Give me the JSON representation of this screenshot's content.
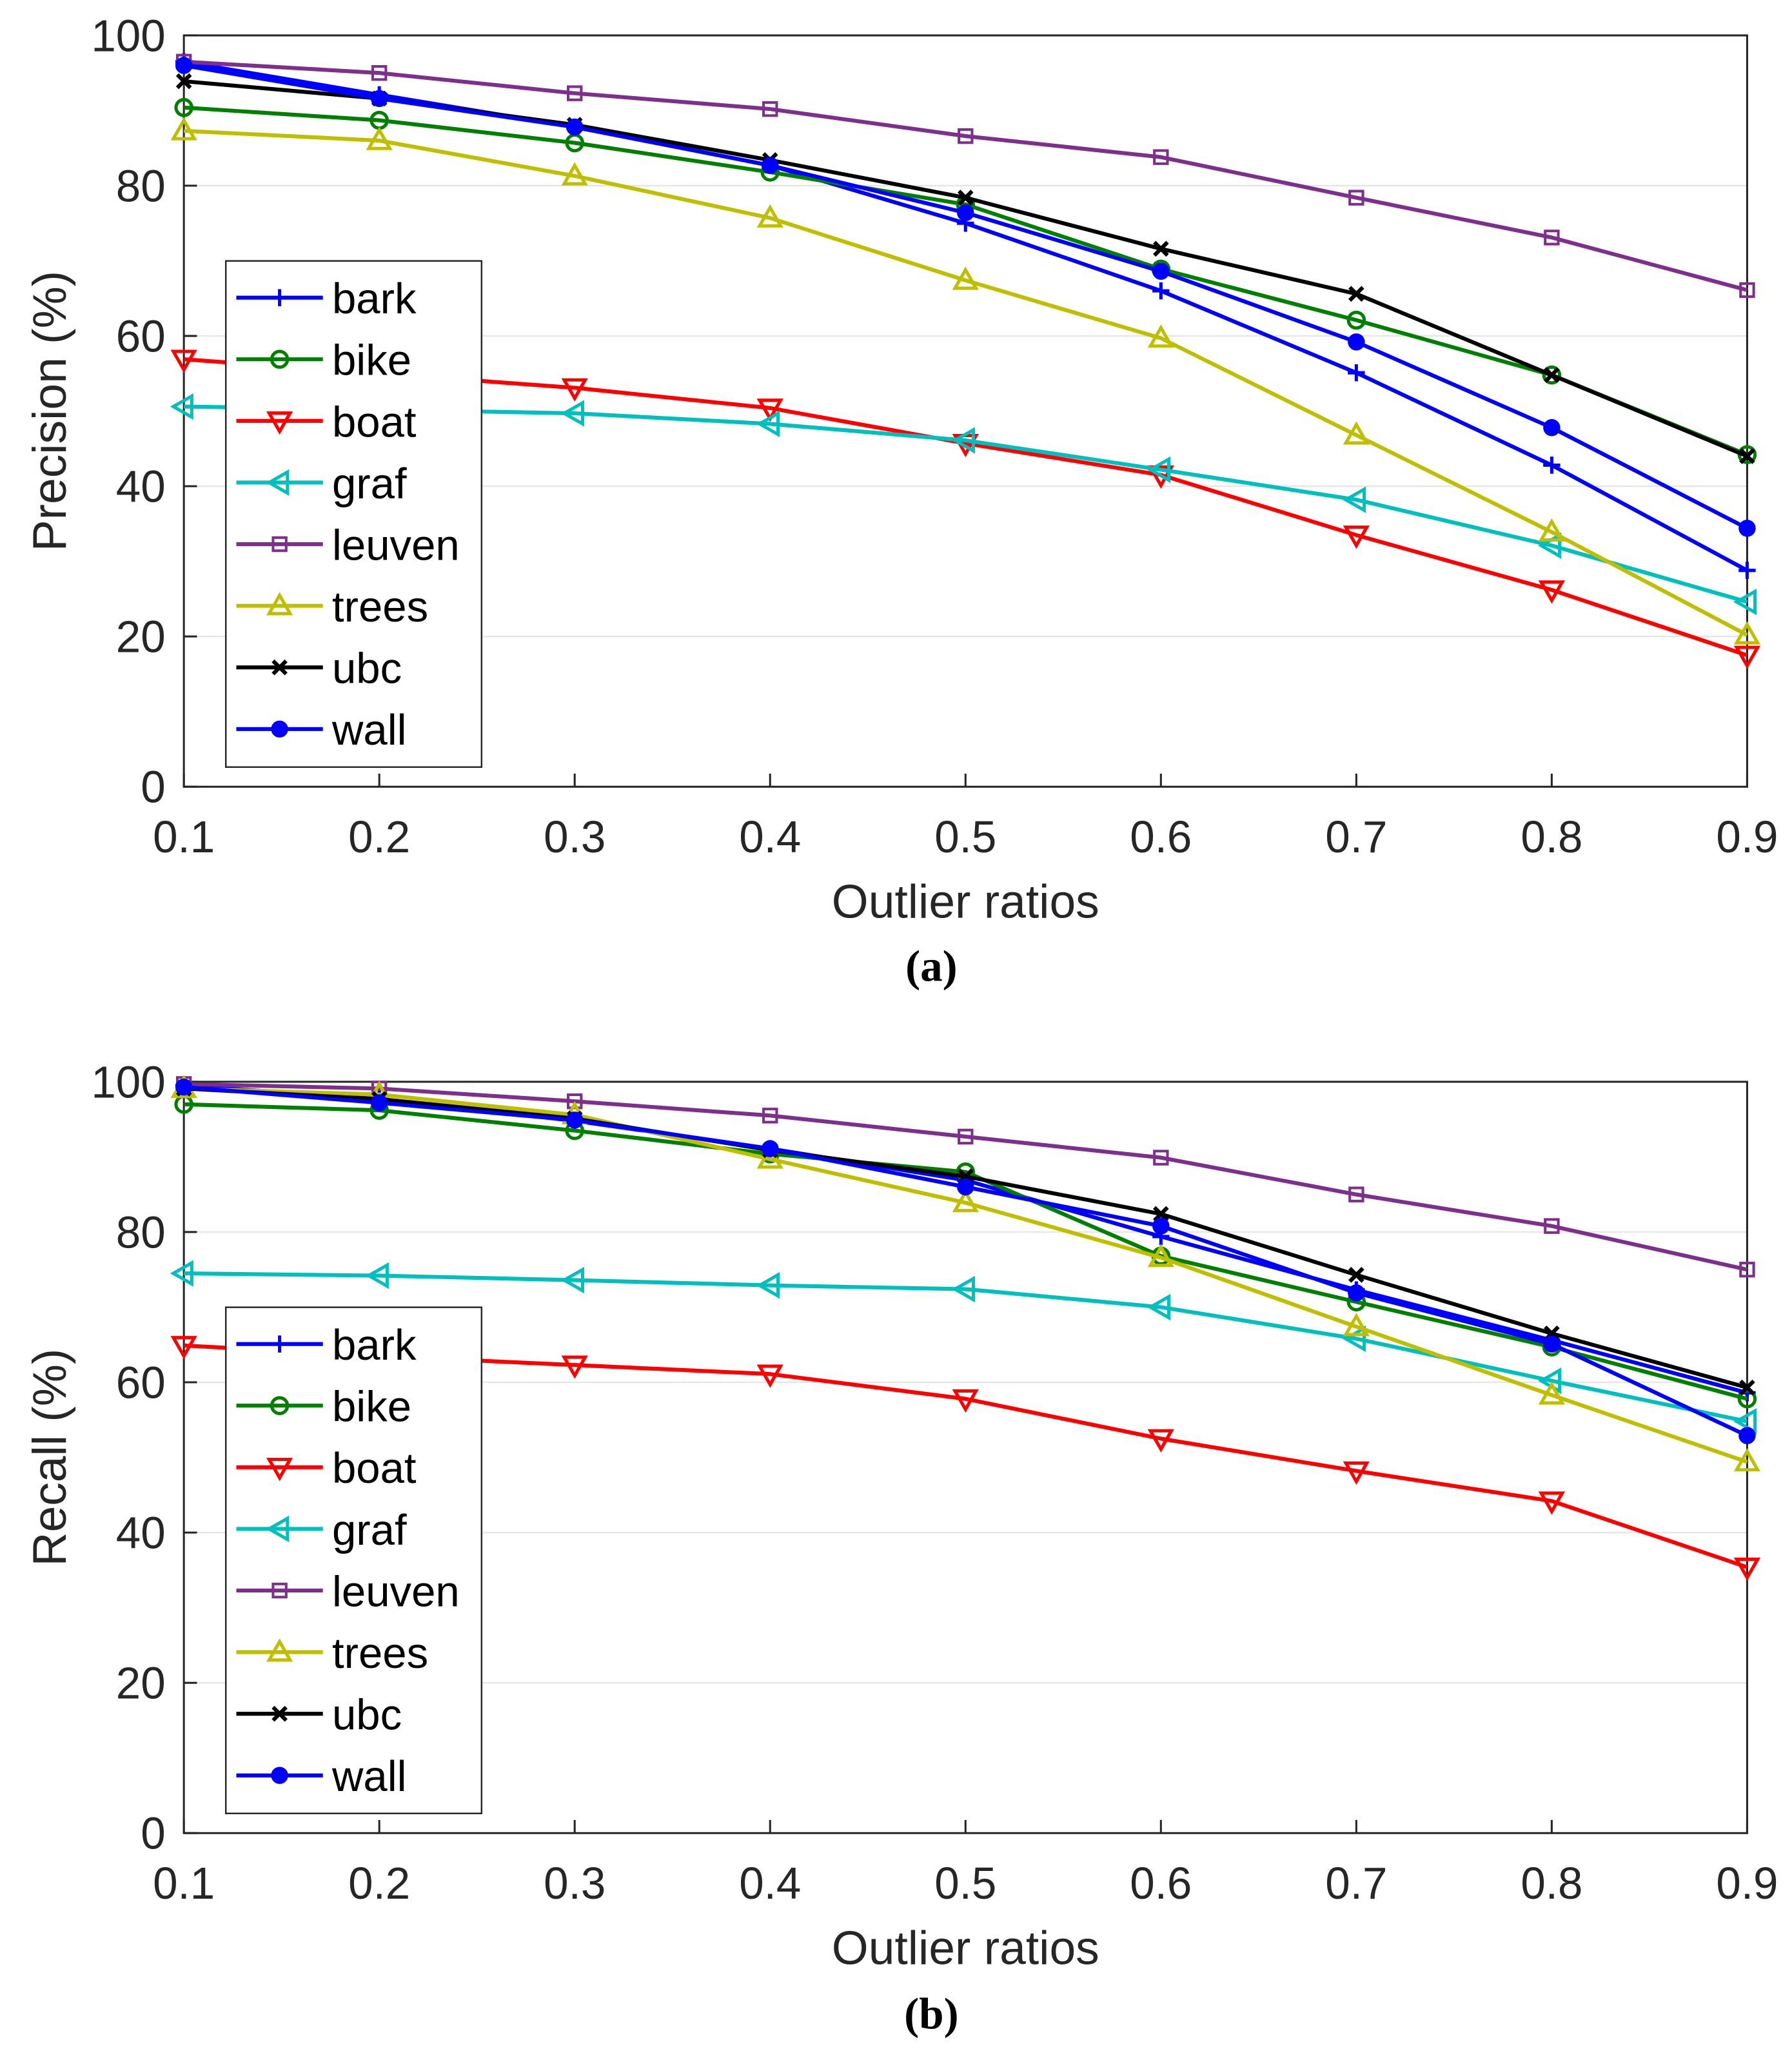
{
  "colors": {
    "bark": "#0000ff",
    "bike": "#008000",
    "boat": "#ff0000",
    "graf": "#00bfbf",
    "leuven": "#7e2f8e",
    "trees": "#bfbf00",
    "ubc": "#000000",
    "wall": "#0000ff"
  },
  "chart_data": [
    {
      "type": "line",
      "caption": "(a)",
      "xlabel": "Outlier ratios",
      "ylabel": "Precision (%)",
      "xlim": [
        0.1,
        0.9
      ],
      "ylim": [
        0,
        100
      ],
      "xticks": [
        "0.1",
        "0.2",
        "0.3",
        "0.4",
        "0.5",
        "0.6",
        "0.7",
        "0.8",
        "0.9"
      ],
      "yticks": [
        "0",
        "20",
        "40",
        "60",
        "80",
        "100"
      ],
      "grid": true,
      "legend_position": "center-left",
      "x": [
        0.1,
        0.2,
        0.3,
        0.4,
        0.5,
        0.6,
        0.7,
        0.8,
        0.9
      ],
      "series": [
        {
          "name": "bark",
          "marker": "plus",
          "values": [
            96.5,
            92.1,
            87.8,
            82.7,
            75.0,
            66.0,
            55.1,
            42.8,
            28.8
          ]
        },
        {
          "name": "bike",
          "marker": "circle",
          "values": [
            90.4,
            88.7,
            85.7,
            81.8,
            77.5,
            68.9,
            62.1,
            54.8,
            44.2
          ]
        },
        {
          "name": "boat",
          "marker": "triangle-down",
          "values": [
            56.9,
            55.0,
            53.1,
            50.4,
            45.7,
            41.5,
            33.5,
            26.2,
            17.5
          ]
        },
        {
          "name": "graf",
          "marker": "triangle-left",
          "values": [
            50.6,
            50.2,
            49.7,
            48.3,
            46.1,
            42.2,
            38.2,
            32.1,
            24.6
          ]
        },
        {
          "name": "leuven",
          "marker": "square",
          "values": [
            96.5,
            95.0,
            92.3,
            90.2,
            86.6,
            83.8,
            78.4,
            73.1,
            66.1
          ]
        },
        {
          "name": "trees",
          "marker": "triangle-up",
          "values": [
            87.3,
            86.0,
            81.3,
            75.7,
            67.4,
            59.7,
            46.8,
            33.9,
            20.2
          ]
        },
        {
          "name": "ubc",
          "marker": "x",
          "values": [
            93.9,
            91.6,
            88.1,
            83.4,
            78.4,
            71.6,
            65.6,
            54.8,
            44.0
          ]
        },
        {
          "name": "wall",
          "marker": "dot",
          "values": [
            96.0,
            91.6,
            87.8,
            82.7,
            76.4,
            68.6,
            59.2,
            47.8,
            34.4
          ]
        }
      ]
    },
    {
      "type": "line",
      "caption": "(b)",
      "xlabel": "Outlier ratios",
      "ylabel": "Recall (%)",
      "xlim": [
        0.1,
        0.9
      ],
      "ylim": [
        0,
        100
      ],
      "xticks": [
        "0.1",
        "0.2",
        "0.3",
        "0.4",
        "0.5",
        "0.6",
        "0.7",
        "0.8",
        "0.9"
      ],
      "yticks": [
        "0",
        "20",
        "40",
        "60",
        "80",
        "100"
      ],
      "grid": true,
      "legend_position": "center-left",
      "x": [
        0.1,
        0.2,
        0.3,
        0.4,
        0.5,
        0.6,
        0.7,
        0.8,
        0.9
      ],
      "series": [
        {
          "name": "bark",
          "marker": "plus",
          "values": [
            99.5,
            97.7,
            94.8,
            91.1,
            86.9,
            79.4,
            72.3,
            65.6,
            58.6
          ]
        },
        {
          "name": "bike",
          "marker": "circle",
          "values": [
            97.0,
            96.2,
            93.5,
            90.4,
            88.0,
            76.8,
            70.7,
            64.7,
            57.8
          ]
        },
        {
          "name": "boat",
          "marker": "triangle-down",
          "values": [
            64.9,
            63.5,
            62.3,
            61.1,
            57.8,
            52.5,
            48.2,
            44.2,
            35.4
          ]
        },
        {
          "name": "graf",
          "marker": "triangle-left",
          "values": [
            74.5,
            74.2,
            73.6,
            72.9,
            72.4,
            70.0,
            65.8,
            60.2,
            54.8
          ]
        },
        {
          "name": "leuven",
          "marker": "square",
          "values": [
            99.7,
            99.1,
            97.4,
            95.5,
            92.7,
            89.9,
            85.0,
            80.8,
            75.0
          ]
        },
        {
          "name": "trees",
          "marker": "triangle-up",
          "values": [
            99.1,
            98.3,
            95.6,
            89.7,
            83.9,
            76.6,
            67.4,
            58.3,
            49.4
          ]
        },
        {
          "name": "ubc",
          "marker": "x",
          "values": [
            99.1,
            97.7,
            95.1,
            90.9,
            87.4,
            82.4,
            74.3,
            66.5,
            59.3
          ]
        },
        {
          "name": "wall",
          "marker": "dot",
          "values": [
            99.3,
            97.2,
            94.9,
            91.1,
            86.0,
            80.8,
            71.9,
            65.1,
            52.9
          ]
        }
      ]
    }
  ]
}
